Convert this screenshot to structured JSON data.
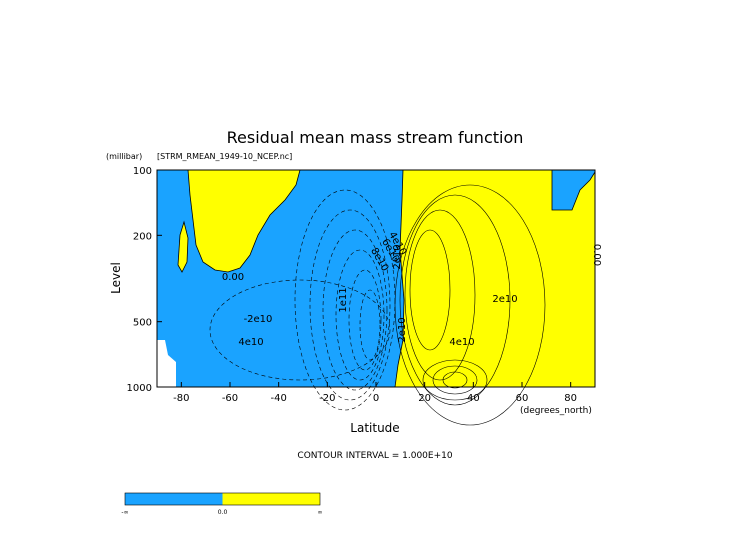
{
  "chart_data": {
    "type": "contour",
    "title": "Residual mean mass stream function",
    "subtitle": "[STRM_RMEAN_1949-10_NCEP.nc]",
    "y_unit": "(millibar)",
    "ylabel": "Level",
    "xlabel": "Latitude",
    "x_unit": "(degrees_north)",
    "xlim": [
      -90,
      90
    ],
    "xticks": [
      -80,
      -60,
      -40,
      -20,
      0,
      20,
      40,
      60,
      80
    ],
    "ylim": [
      1000,
      100
    ],
    "yticks": [
      100,
      200,
      500,
      1000
    ],
    "ylog": true,
    "negative_color": "#1aa3ff",
    "positive_color": "#ffff00",
    "contour_labels": [
      "0.00",
      "-2e10",
      "4e10",
      "1e11",
      "8e10",
      "6e10",
      "4e10",
      "2e10",
      "2e10",
      "2e10",
      "4e10",
      "0.00"
    ],
    "footnote": "CONTOUR INTERVAL = 1.000E+10",
    "colorbar_labels": [
      "-∞",
      "0.0",
      "∞"
    ]
  }
}
